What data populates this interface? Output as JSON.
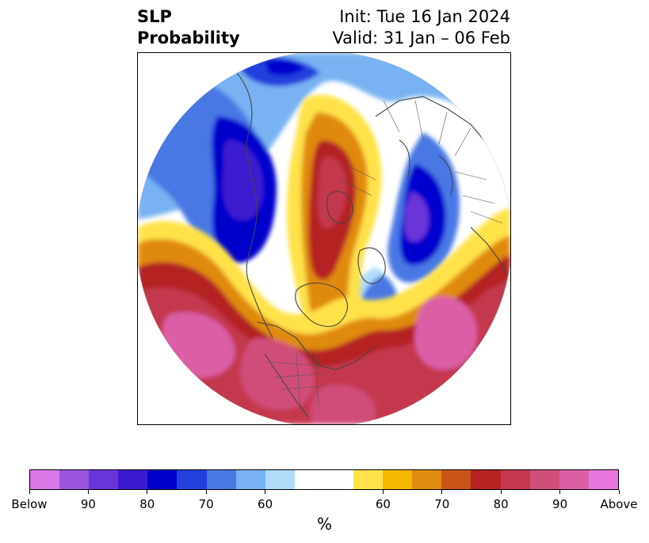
{
  "header": {
    "title_line1": "SLP",
    "title_line2": "Probability",
    "init_text": "Init: Tue 16 Jan 2024",
    "valid_text": "Valid: 31 Jan – 06 Feb"
  },
  "colorbar": {
    "unit": "%",
    "tick_labels": [
      "Below",
      "90",
      "80",
      "70",
      "60",
      "60",
      "70",
      "80",
      "90",
      "Above"
    ],
    "bins": [
      {
        "color": "#d977e6"
      },
      {
        "color": "#9a56e0"
      },
      {
        "color": "#6a35d8"
      },
      {
        "color": "#3d1ad0"
      },
      {
        "color": "#0000cc"
      },
      {
        "color": "#2240dd"
      },
      {
        "color": "#4a78e5"
      },
      {
        "color": "#78b2f2"
      },
      {
        "color": "#b0dcfa"
      },
      {
        "color": "#ffffff"
      },
      {
        "color": "#ffffff"
      },
      {
        "color": "#ffe24a"
      },
      {
        "color": "#f5b800"
      },
      {
        "color": "#e08a10"
      },
      {
        "color": "#c85418"
      },
      {
        "color": "#b42222"
      },
      {
        "color": "#c4384e"
      },
      {
        "color": "#d04e7a"
      },
      {
        "color": "#dc5fa6"
      },
      {
        "color": "#e677dc"
      }
    ]
  },
  "map": {
    "projection": "north-polar-stereographic",
    "variable": "SLP",
    "anomalies": [
      {
        "region": "western Siberia / Urals",
        "sign": "below",
        "peak_color": "#6a35d8"
      },
      {
        "region": "northern Atlantic / Scandinavia",
        "sign": "below",
        "peak_color": "#6a35d8"
      },
      {
        "region": "Gulf of Alaska",
        "sign": "below",
        "peak_color": "#0000cc"
      },
      {
        "region": "Arctic / Greenland",
        "sign": "above",
        "peak_color": "#c4384e"
      },
      {
        "region": "North Pacific",
        "sign": "above",
        "peak_color": "#dc5fa6"
      },
      {
        "region": "United States",
        "sign": "above",
        "peak_color": "#dc5fa6"
      },
      {
        "region": "eastern North Atlantic",
        "sign": "above",
        "peak_color": "#dc5fa6"
      }
    ]
  }
}
